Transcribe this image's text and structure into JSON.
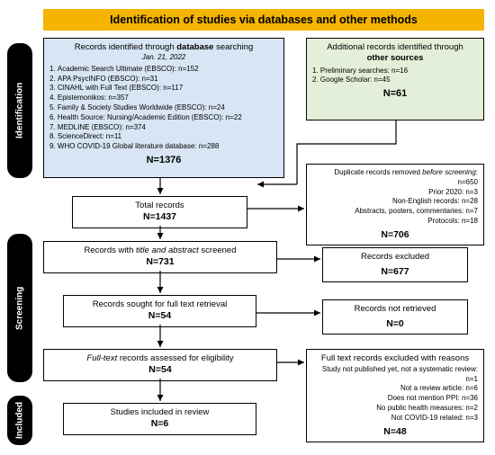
{
  "header": {
    "title": "Identification of studies via databases and other methods"
  },
  "colors": {
    "header_bg": "#f4b400",
    "db_box_bg": "#d8e5f4",
    "src_box_bg": "#e4efd9",
    "phase_bg": "#000000",
    "phase_fg": "#ffffff",
    "box_border": "#000000",
    "arrow": "#000000"
  },
  "phases": {
    "identification": "Identification",
    "screening": "Screening",
    "included": "Included"
  },
  "db_box": {
    "title_pre": "Records identified through ",
    "title_bold": "database",
    "title_post": " searching",
    "date": "Jan. 21, 2022",
    "items": [
      "Academic Search Ultimate (EBSCO): n=152",
      "APA PsycINFO (EBSCO): n=31",
      "CINAHL with Full Text (EBSCO): n=117",
      "Epistemonikos: n=357",
      "Family & Society Studies Worldwide (EBSCO): n=24",
      "Health Source: Nursing/Academic Edition (EBSCO): n=22",
      "MEDLINE (EBSCO): n=374",
      "ScienceDirect: n=11",
      "WHO COVID-19 Global literature database: n=288"
    ],
    "total": "N=1376"
  },
  "src_box": {
    "title_pre": "Additional records identified through",
    "title_bold": "other sources",
    "items": [
      "Preliminary searches: n=16",
      "Google Scholar: n=45"
    ],
    "total": "N=61"
  },
  "steps": {
    "total_records": {
      "label": "Total records",
      "n": "N=1437"
    },
    "screened": {
      "label_pre": "Records with ",
      "label_ital": "title and abstract",
      "label_post": " screened",
      "n": "N=731"
    },
    "retrieval": {
      "label": "Records sought for full text retrieval",
      "n": "N=54"
    },
    "fulltext": {
      "label_ital": "Full-text",
      "label_post": " records assessed for eligibility",
      "n": "N=54"
    },
    "included": {
      "label": "Studies included in review",
      "n": "N=6"
    }
  },
  "exclusions": {
    "dup": {
      "lines": [
        {
          "pre": "Duplicate records removed ",
          "ital": "before screening",
          "post": ": n=650"
        },
        {
          "text": "Prior 2020: n=3"
        },
        {
          "text": "Non-English records: n=28"
        },
        {
          "text": "Abstracts, posters, commentaries: n=7"
        },
        {
          "text": "Protocols: n=18"
        }
      ],
      "n": "N=706"
    },
    "excluded": {
      "label": "Records excluded",
      "n": "N=677"
    },
    "notret": {
      "label": "Records not retrieved",
      "n": "N=0"
    },
    "fullexcl": {
      "title": "Full text records excluded with reasons",
      "lines": [
        "Study not published yet, not a systematic review: n=1",
        "Not a review article: n=6",
        "Does not mention PPI: n=36",
        "No public health measures: n=2",
        "Not COVID-19 related: n=3"
      ],
      "n": "N=48"
    }
  }
}
